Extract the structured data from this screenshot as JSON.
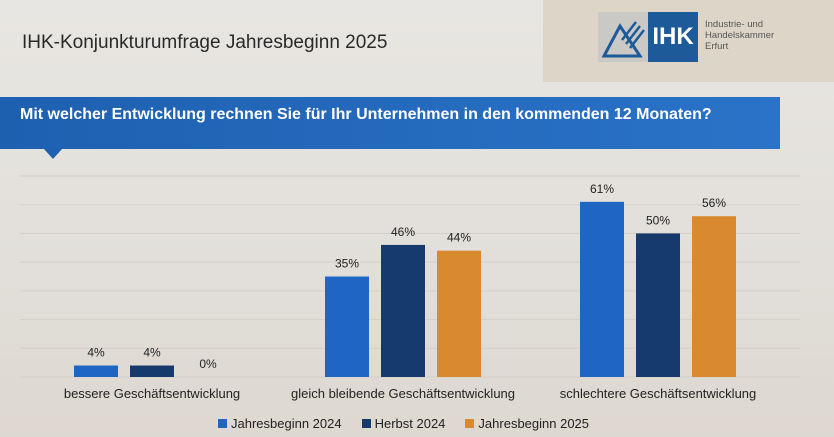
{
  "header": {
    "title": "IHK-Konjunkturumfrage Jahresbeginn 2025"
  },
  "logo": {
    "mark": "IHK",
    "line1": "Industrie- und Handelskammer",
    "line2": "Erfurt"
  },
  "chart_data": {
    "type": "bar",
    "title": "Mit welcher Entwicklung rechnen Sie für Ihr Unternehmen in den kommenden 12 Monaten?",
    "categories": [
      "bessere Geschäftsentwicklung",
      "gleich bleibende Geschäftsentwicklung",
      "schlechtere Geschäftsentwicklung"
    ],
    "series": [
      {
        "name": "Jahresbeginn 2024",
        "color": "#1f66c2",
        "values": [
          4,
          35,
          61
        ]
      },
      {
        "name": "Herbst 2024",
        "color": "#163a6b",
        "values": [
          4,
          46,
          50
        ]
      },
      {
        "name": "Jahresbeginn 2025",
        "color": "#d98a2e",
        "values": [
          0,
          44,
          56
        ]
      }
    ],
    "value_suffix": "%",
    "ylim": [
      0,
      70
    ],
    "grid": true,
    "legend": "bottom"
  }
}
